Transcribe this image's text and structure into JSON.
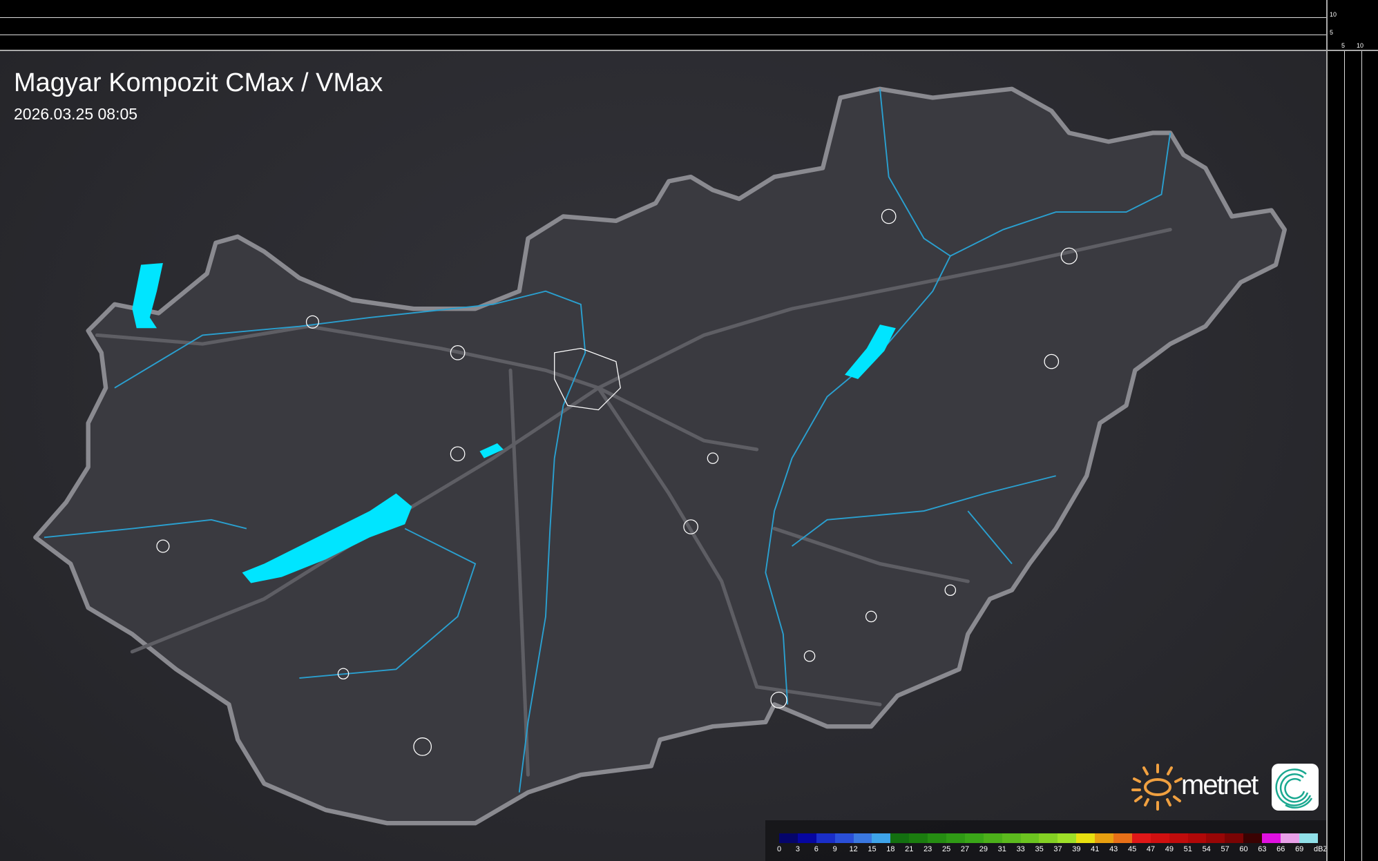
{
  "header": {
    "title": "Magyar Kompozit CMax / VMax",
    "timestamp": "2026.03.25 08:05"
  },
  "scale_axes": {
    "vertical_labels": [
      "10",
      "5"
    ],
    "horizontal_labels": [
      "5",
      "10"
    ]
  },
  "legend": {
    "unit": "dBZ",
    "values": [
      "0",
      "3",
      "6",
      "9",
      "12",
      "15",
      "18",
      "21",
      "23",
      "25",
      "27",
      "29",
      "31",
      "33",
      "35",
      "37",
      "39",
      "41",
      "43",
      "45",
      "47",
      "49",
      "51",
      "54",
      "57",
      "60",
      "63",
      "66",
      "69"
    ],
    "colors": [
      "#05056a",
      "#0606a0",
      "#1a2ec8",
      "#2a4fd8",
      "#3a78e0",
      "#3ea4ea",
      "#137010",
      "#1b7d0f",
      "#258d12",
      "#2f9a15",
      "#3aa618",
      "#4cb01a",
      "#5cba1e",
      "#6cc420",
      "#84d024",
      "#9ee028",
      "#e8e010",
      "#e8a010",
      "#e87018",
      "#e01818",
      "#d01010",
      "#c00c0c",
      "#b00808",
      "#980606",
      "#7a0404",
      "#3a0202",
      "#e010e0",
      "#e8a0e8",
      "#90e0e8"
    ]
  },
  "branding": {
    "logo_text": "metnet",
    "logo_sun_color": "#f0a040",
    "icon_color": "#1aa890"
  },
  "map_colors": {
    "border": "#7a7a80",
    "rivers": "#2aa0d0",
    "lakes": "#00e5ff",
    "cities": "#ffffff",
    "roads": "#5a5a60"
  }
}
